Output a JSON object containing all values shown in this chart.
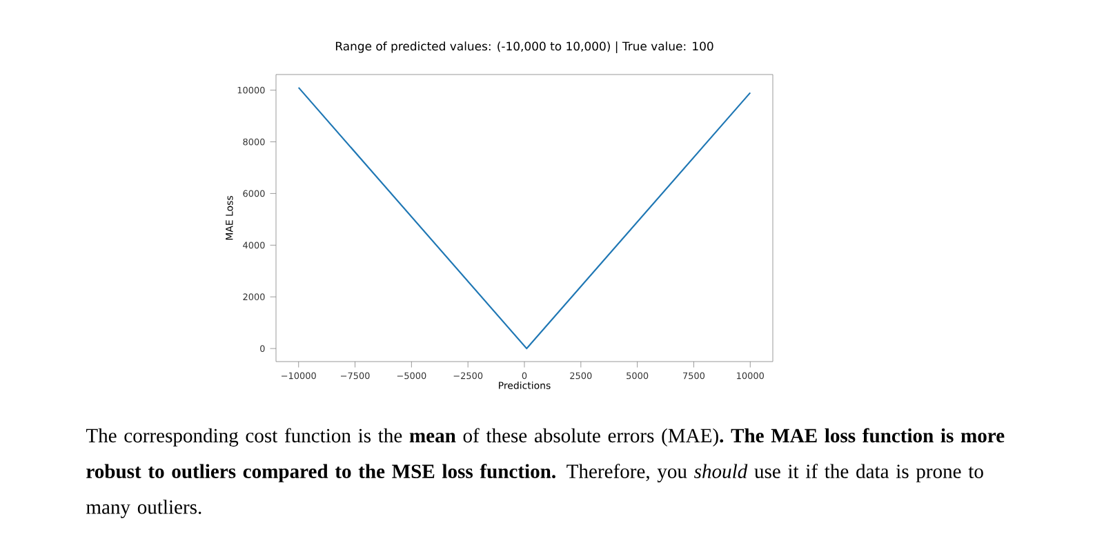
{
  "chart_data": {
    "type": "line",
    "title": "Range of predicted values: (-10,000 to 10,000) | True value: 100",
    "xlabel": "Predictions",
    "ylabel": "MAE Loss",
    "x": [
      -10000,
      100,
      10000
    ],
    "series": [
      {
        "color": "#1f77b4",
        "values": [
          10100,
          0,
          9900
        ]
      }
    ],
    "xlim": [
      -11000,
      11000
    ],
    "ylim": [
      -505,
      10605
    ],
    "xticks": [
      {
        "value": -10000,
        "label": "−10000"
      },
      {
        "value": -7500,
        "label": "−7500"
      },
      {
        "value": -5000,
        "label": "−5000"
      },
      {
        "value": -2500,
        "label": "−2500"
      },
      0,
      2500,
      5000,
      7500,
      10000
    ],
    "yticks": [
      0,
      2000,
      4000,
      6000,
      8000,
      10000
    ],
    "grid": false,
    "marker": "none",
    "line_style": "solid",
    "annotations": [
      "The corresponding cost function is the **mean** of these absolute errors (MAE)**. The MAE loss function is more robust to outliers compared to the MSE loss function.** Therefore, you *should* use it if the data is prone to many outliers."
    ]
  }
}
